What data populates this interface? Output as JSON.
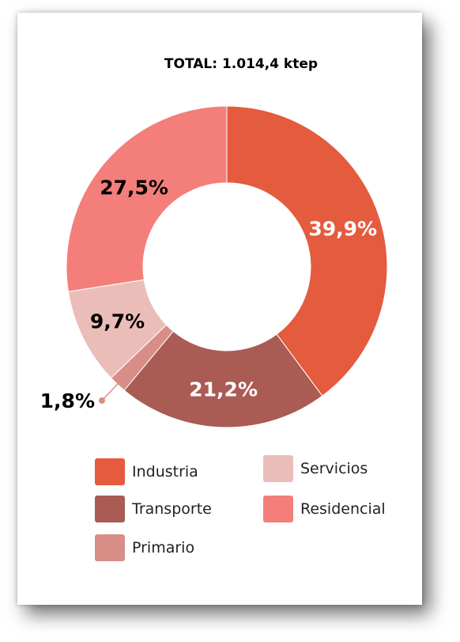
{
  "chart_data": {
    "type": "pie",
    "title": "TOTAL: 1.014,4 ktep",
    "slices": [
      {
        "name": "Industria",
        "value": 39.9,
        "label": "39,9%",
        "color": "#E45B3E",
        "label_color": "#ffffff"
      },
      {
        "name": "Transporte",
        "value": 21.2,
        "label": "21,2%",
        "color": "#AA5B54",
        "label_color": "#ffffff"
      },
      {
        "name": "Primario",
        "value": 1.8,
        "label": "1,8%",
        "color": "#D88E87",
        "label_color": "#000000"
      },
      {
        "name": "Servicios",
        "value": 9.7,
        "label": "9,7%",
        "color": "#EBBDB8",
        "label_color": "#000000"
      },
      {
        "name": "Residencial",
        "value": 27.5,
        "label": "27,5%",
        "color": "#F47E7A",
        "label_color": "#000000"
      }
    ]
  },
  "legend": {
    "items": [
      {
        "label": "Industria",
        "color": "#E45B3E"
      },
      {
        "label": "Transporte",
        "color": "#AA5B54"
      },
      {
        "label": "Primario",
        "color": "#D88E87"
      },
      {
        "label": "Servicios",
        "color": "#EBBDB8"
      },
      {
        "label": "Residencial",
        "color": "#F47E7A"
      }
    ]
  }
}
